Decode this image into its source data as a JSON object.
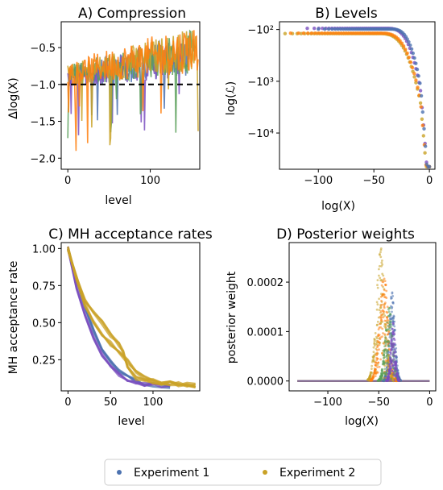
{
  "colors": {
    "exp1": "#4c72b0",
    "exp2": "#c9a227",
    "orange": "#ff7f0e",
    "green": "#5aa05a",
    "purple": "#7a4fbf",
    "dashed": "#000000"
  },
  "legend": {
    "entries": [
      {
        "label": "Experiment 1",
        "color": "#4c72b0"
      },
      {
        "label": "Experiment 2",
        "color": "#c9a227"
      }
    ]
  },
  "chart_data": [
    {
      "type": "line",
      "title": "A) Compression",
      "xlabel": "level",
      "ylabel": "Δlog(X)",
      "xlim": [
        -8,
        160
      ],
      "ylim": [
        -2.15,
        -0.15
      ],
      "xticks": [
        0,
        100
      ],
      "xtick_labels": [
        "0",
        "100"
      ],
      "yticks": [
        -0.5,
        -1.0,
        -1.5,
        -2.0
      ],
      "ytick_labels": [
        "−0.5",
        "−1.0",
        "−1.5",
        "−2.0"
      ],
      "reference_line": {
        "y": -1.0,
        "style": "dashed"
      },
      "series": [
        {
          "color": "#4c72b0",
          "x_end": 150,
          "mean_start": -0.9,
          "mean_end": -0.6,
          "amplitude": 0.25
        },
        {
          "color": "#7a4fbf",
          "x_end": 140,
          "mean_start": -0.9,
          "mean_end": -0.65,
          "amplitude": 0.22
        },
        {
          "color": "#5aa05a",
          "x_end": 155,
          "mean_start": -0.88,
          "mean_end": -0.55,
          "amplitude": 0.25
        },
        {
          "color": "#c9a227",
          "x_end": 158,
          "mean_start": -0.88,
          "mean_end": -0.5,
          "amplitude": 0.25
        },
        {
          "color": "#ff7f0e",
          "x_end": 158,
          "mean_start": -0.85,
          "mean_end": -0.5,
          "amplitude": 0.28
        }
      ]
    },
    {
      "type": "scatter",
      "title": "B) Levels",
      "xlabel": "log(X)",
      "ylabel": "log(ℒ)",
      "xlim": [
        -135,
        5
      ],
      "ylim_log10_neg": [
        1.85,
        4.7
      ],
      "xticks": [
        -100,
        -50,
        0
      ],
      "xtick_labels": [
        "−100",
        "−50",
        "0"
      ],
      "yticks_value": [
        -100,
        -1000,
        -10000
      ],
      "ytick_labels": [
        "−10²",
        "−10³",
        "−10⁴"
      ],
      "series": [
        {
          "name": "Experiment 1",
          "color": "#7a4fbf",
          "x_start": -110,
          "plateau": -95,
          "points": 60
        },
        {
          "name": "Experiment 2",
          "color": "#c9a227",
          "x_start": -130,
          "plateau": -120,
          "points": 70
        },
        {
          "color": "#ff7f0e",
          "x_start": -125,
          "plateau": -118,
          "points": 60
        },
        {
          "color": "#4c72b0",
          "x_start": -100,
          "plateau": -98,
          "points": 60
        }
      ]
    },
    {
      "type": "line",
      "title": "C) MH acceptance rates",
      "xlabel": "level",
      "ylabel": "MH acceptance rate",
      "xlim": [
        -8,
        155
      ],
      "ylim": [
        0.04,
        1.04
      ],
      "xticks": [
        0,
        50,
        100
      ],
      "xtick_labels": [
        "0",
        "50",
        "100"
      ],
      "yticks": [
        1.0,
        0.75,
        0.5,
        0.25
      ],
      "ytick_labels": [
        "1.00",
        "0.75",
        "0.50",
        "0.25"
      ],
      "series": [
        {
          "name": "Experiment 1",
          "color": "#4c72b0",
          "x": [
            0,
            10,
            20,
            30,
            40,
            50,
            60,
            70,
            80,
            90,
            100,
            110,
            120
          ],
          "y": [
            1.0,
            0.78,
            0.6,
            0.45,
            0.33,
            0.24,
            0.17,
            0.13,
            0.11,
            0.09,
            0.08,
            0.075,
            0.07
          ]
        },
        {
          "name": "Experiment 1",
          "color": "#7a4fbf",
          "x": [
            0,
            10,
            20,
            30,
            40,
            50,
            60,
            70,
            80,
            90,
            100,
            110,
            120
          ],
          "y": [
            1.0,
            0.74,
            0.55,
            0.4,
            0.29,
            0.2,
            0.15,
            0.12,
            0.1,
            0.085,
            0.08,
            0.075,
            0.07
          ]
        },
        {
          "name": "Experiment 2",
          "color": "#c9a227",
          "x": [
            0,
            10,
            20,
            30,
            40,
            50,
            60,
            65,
            70,
            80,
            90,
            100,
            110,
            120,
            130,
            140,
            150
          ],
          "y": [
            1.0,
            0.8,
            0.65,
            0.57,
            0.5,
            0.42,
            0.35,
            0.3,
            0.2,
            0.13,
            0.11,
            0.1,
            0.095,
            0.09,
            0.085,
            0.08,
            0.078
          ]
        },
        {
          "name": "Experiment 2",
          "color": "#c9a227",
          "x": [
            0,
            10,
            20,
            30,
            40,
            50,
            60,
            70,
            80,
            90,
            100,
            110,
            120,
            130,
            140,
            150
          ],
          "y": [
            1.0,
            0.8,
            0.62,
            0.5,
            0.42,
            0.36,
            0.3,
            0.24,
            0.17,
            0.13,
            0.11,
            0.1,
            0.09,
            0.085,
            0.08,
            0.078
          ]
        }
      ]
    },
    {
      "type": "scatter",
      "title": "D) Posterior weights",
      "xlabel": "log(X)",
      "ylabel": "posterior weight",
      "xlim": [
        -138,
        6
      ],
      "ylim": [
        -2e-05,
        0.00028
      ],
      "xticks": [
        -100,
        -50,
        0
      ],
      "xtick_labels": [
        "−100",
        "−50",
        "0"
      ],
      "yticks": [
        0,
        0.0001,
        0.0002
      ],
      "ytick_labels": [
        "0.0000",
        "0.0001",
        "0.0002"
      ],
      "series": [
        {
          "name": "Experiment 1",
          "color": "#4c72b0",
          "center": -37,
          "width": 4,
          "peak": 0.00018
        },
        {
          "name": "Experiment 2",
          "color": "#c9a227",
          "center": -48,
          "width": 6,
          "peak": 0.00027
        },
        {
          "color": "#ff7f0e",
          "center": -45,
          "width": 6,
          "peak": 0.00022
        },
        {
          "color": "#5aa05a",
          "center": -40,
          "width": 5,
          "peak": 0.00015
        },
        {
          "color": "#7a4fbf",
          "center": -36,
          "width": 3,
          "peak": 0.00012
        }
      ]
    }
  ]
}
